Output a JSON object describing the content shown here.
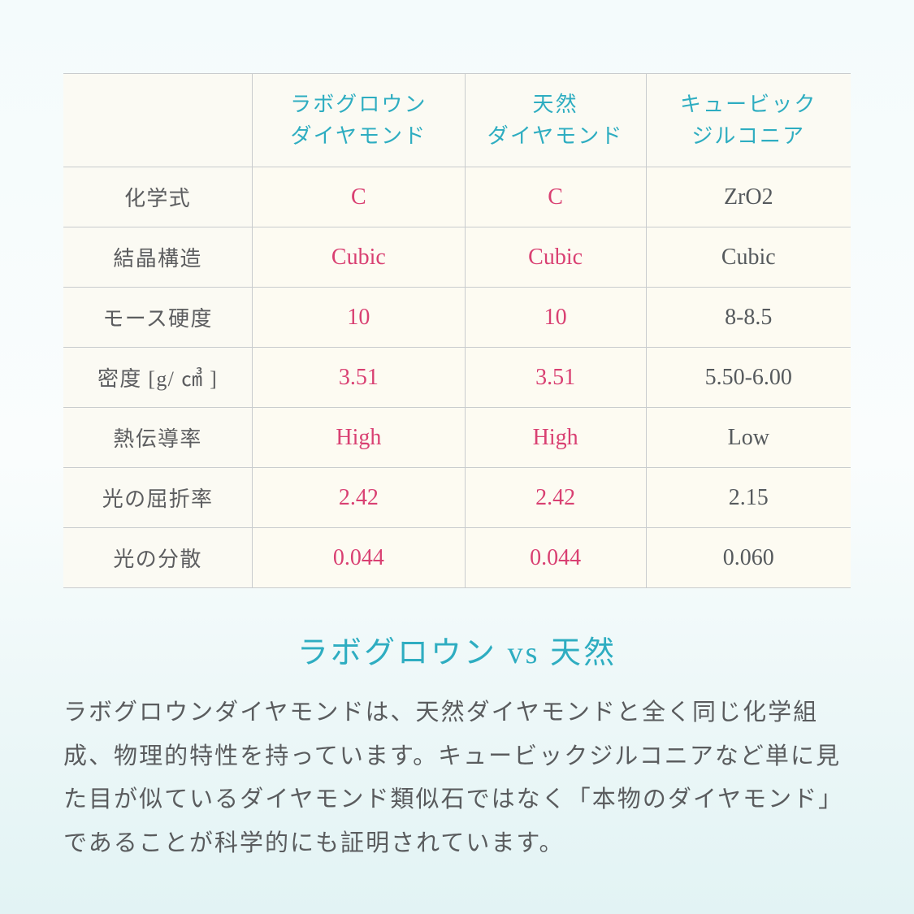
{
  "table": {
    "headers": {
      "blank": "",
      "col1_line1": "ラボグロウン",
      "col1_line2": "ダイヤモンド",
      "col2_line1": "天然",
      "col2_line2": "ダイヤモンド",
      "col3_line1": "キュービック",
      "col3_line2": "ジルコニア"
    },
    "rows": [
      {
        "label": "化学式",
        "c1": "C",
        "c2": "C",
        "c3": "ZrO2"
      },
      {
        "label": "結晶構造",
        "c1": "Cubic",
        "c2": "Cubic",
        "c3": "Cubic"
      },
      {
        "label": "モース硬度",
        "c1": "10",
        "c2": "10",
        "c3": "8-8.5"
      },
      {
        "label": "密度 [g/ ㎤ ]",
        "c1": "3.51",
        "c2": "3.51",
        "c3": "5.50-6.00"
      },
      {
        "label": "熱伝導率",
        "c1": "High",
        "c2": "High",
        "c3": "Low"
      },
      {
        "label": "光の屈折率",
        "c1": "2.42",
        "c2": "2.42",
        "c3": "2.15"
      },
      {
        "label": "光の分散",
        "c1": "0.044",
        "c2": "0.044",
        "c3": "0.060"
      }
    ]
  },
  "title": "ラボグロウン vs 天然",
  "body": "ラボグロウンダイヤモンドは、天然ダイヤモンドと全く同じ化学組成、物理的特性を持っています。キュービックジルコニアなど単に見た目が似ているダイヤモンド類似石ではなく「本物のダイヤモンド」であることが科学的にも証明されています。",
  "styling": {
    "highlight_color": "#d94072",
    "normal_color": "#565a5d",
    "header_color": "#2eadc1",
    "rowlabel_color": "#5c5d5f",
    "cell_bg": "#fdfbf2",
    "header_bg": "#fbfaf3",
    "border_color": "#c9ccce",
    "title_color": "#2eadc1",
    "body_color": "#5a5c5e",
    "page_bg_top": "#f4fbfc",
    "page_bg_bottom": "#e2f3f4",
    "header_fontsize": 26,
    "rowlabel_fontsize": 26,
    "cell_fontsize": 28,
    "title_fontsize": 38,
    "body_fontsize": 29
  }
}
